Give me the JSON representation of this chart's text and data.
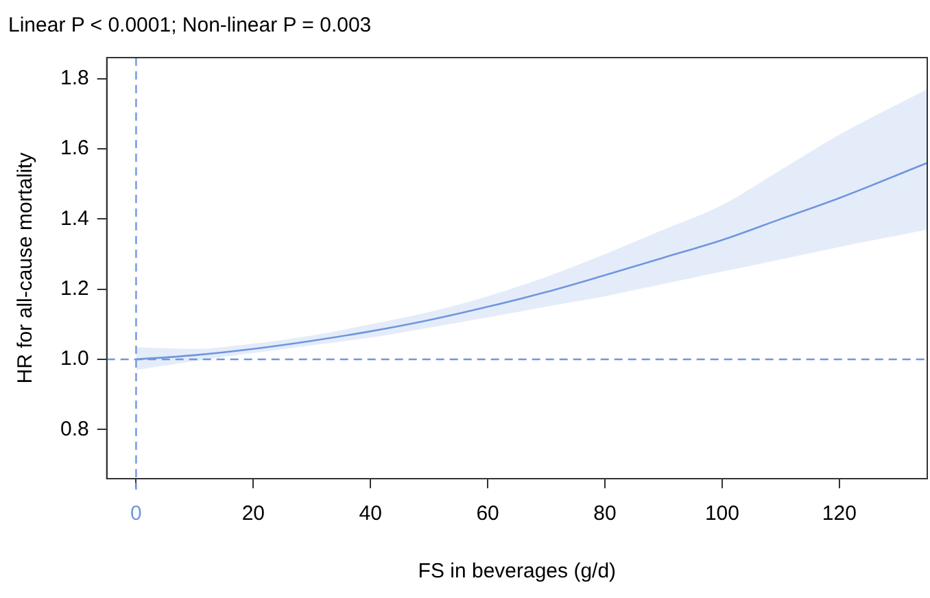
{
  "chart_data": {
    "type": "line",
    "title": "Linear P < 0.0001; Non-linear P = 0.003",
    "xlabel": "FS in beverages (g/d)",
    "ylabel": "HR for all-cause mortality",
    "x": [
      0,
      10,
      20,
      30,
      40,
      50,
      60,
      70,
      80,
      90,
      100,
      110,
      120,
      135
    ],
    "series": [
      {
        "color": "#6f97e0",
        "values": [
          1.0,
          1.012,
          1.03,
          1.053,
          1.08,
          1.112,
          1.15,
          1.192,
          1.24,
          1.29,
          1.34,
          1.4,
          1.46,
          1.56
        ],
        "lower": [
          0.97,
          0.995,
          1.018,
          1.04,
          1.062,
          1.09,
          1.12,
          1.15,
          1.18,
          1.215,
          1.25,
          1.285,
          1.32,
          1.37
        ],
        "upper": [
          1.035,
          1.03,
          1.045,
          1.068,
          1.1,
          1.135,
          1.18,
          1.235,
          1.3,
          1.37,
          1.44,
          1.54,
          1.64,
          1.77
        ]
      }
    ],
    "xlim": [
      -5,
      135
    ],
    "xticks": [
      0,
      20,
      40,
      60,
      80,
      100,
      120
    ],
    "ylim": [
      0.66,
      1.86
    ],
    "yticks": [
      0.8,
      {
        "value": 1,
        "label": "1.0"
      },
      1.2,
      1.4,
      1.6,
      1.8
    ],
    "grid": false,
    "legend": false,
    "marker": "none",
    "line_style": "solid",
    "ref_lines": [
      {
        "axis": "y",
        "value": 1.0,
        "color": "#6f97e0",
        "line_style": "dashed"
      },
      {
        "axis": "x",
        "value": 0,
        "color": "#6f97e0",
        "line_style": "dashed"
      }
    ]
  }
}
